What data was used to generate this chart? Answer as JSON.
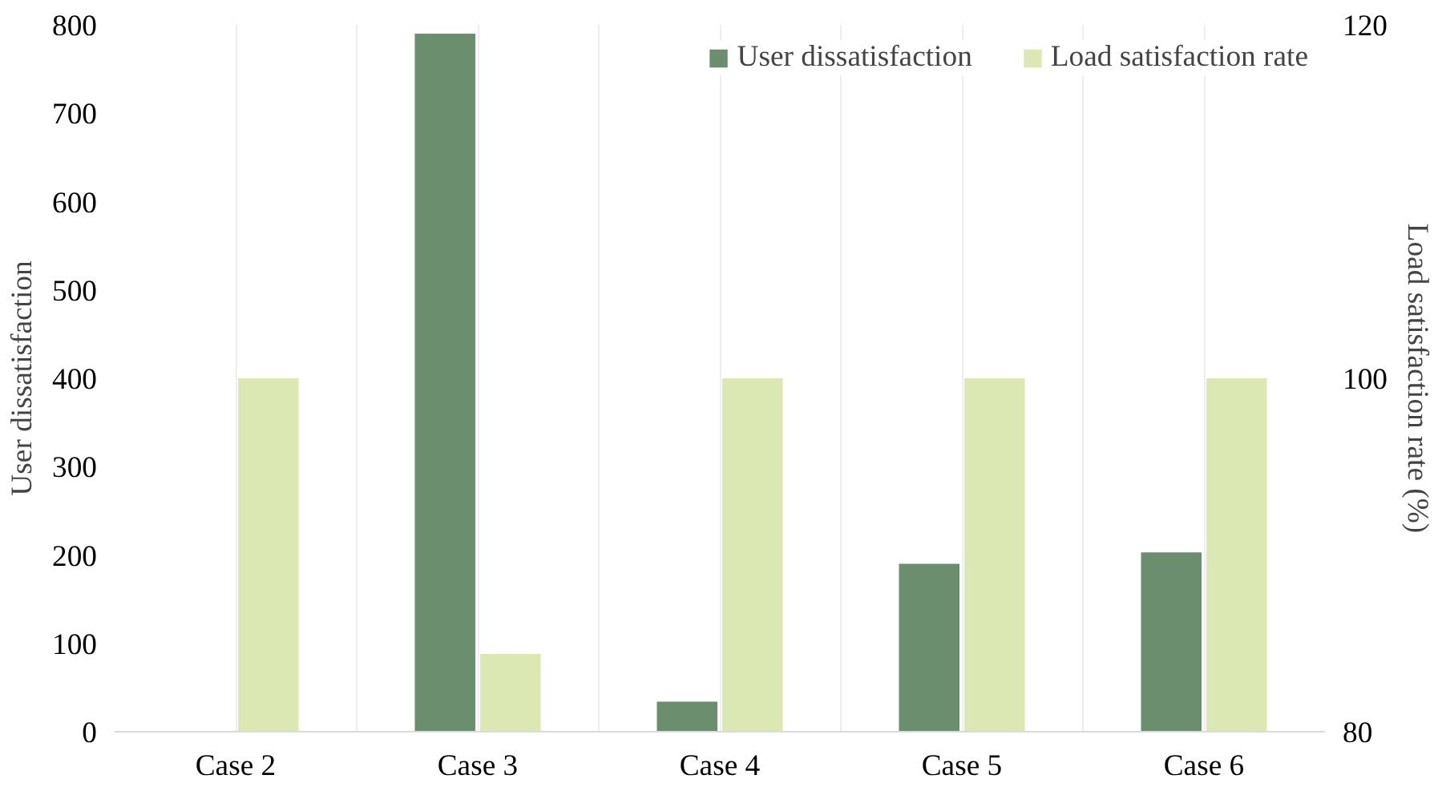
{
  "chart_data": {
    "type": "bar",
    "categories": [
      "Case 2",
      "Case 3",
      "Case 4",
      "Case 5",
      "Case 6"
    ],
    "ylabel": "User dissatisfaction",
    "y2label": "Load satisfaction rate (%)",
    "ylim": [
      0,
      800
    ],
    "yticks": [
      0,
      100,
      200,
      300,
      400,
      500,
      600,
      700,
      800
    ],
    "y2lim": [
      80,
      120
    ],
    "y2ticks": [
      80,
      100,
      120
    ],
    "series": [
      {
        "name": "User dissatisfaction",
        "color": "#6b8e6f",
        "values": [
          0,
          790,
          34,
          190,
          203
        ]
      },
      {
        "name": "Load satisfaction rate",
        "color": "#dce8b4",
        "values": [
          100,
          84.4,
          100,
          100,
          100
        ],
        "axis": "y2"
      }
    ],
    "grid": "x",
    "legend": "top right"
  }
}
